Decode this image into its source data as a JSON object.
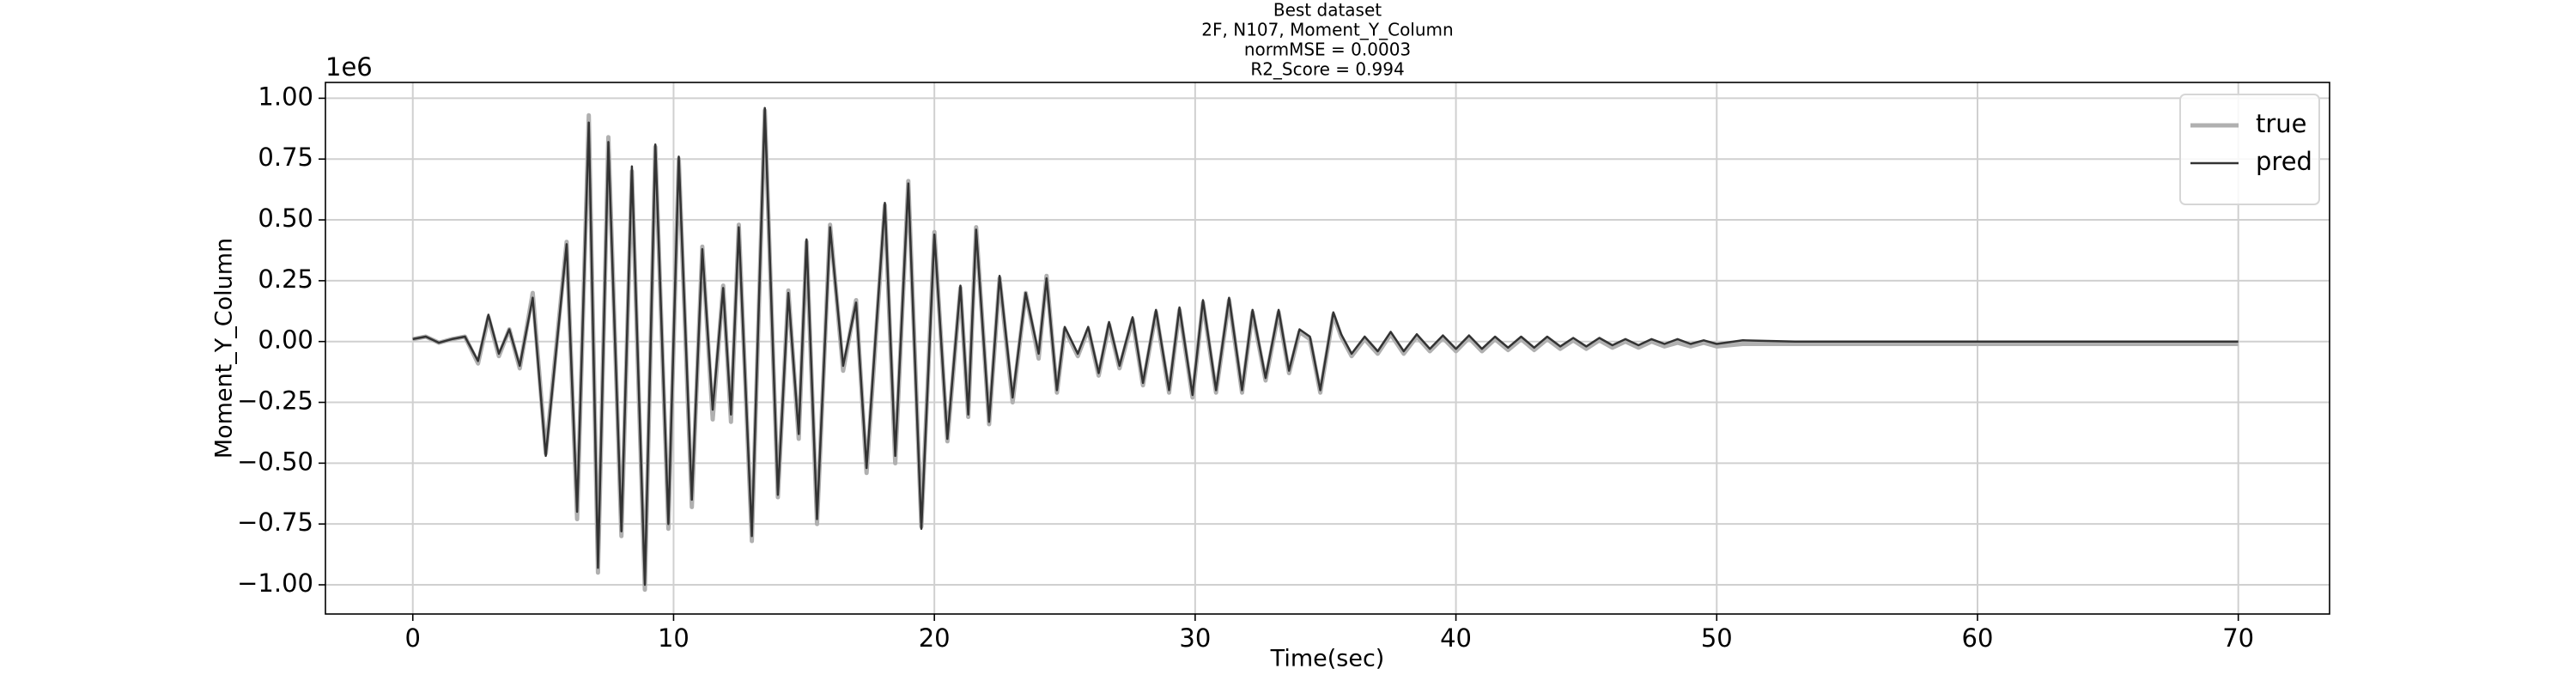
{
  "chart_data": {
    "type": "line",
    "title_lines": [
      "Best dataset",
      "2F, N107, Moment_Y_Column",
      "normMSE = 0.0003",
      "R2_Score = 0.994"
    ],
    "xlabel": "Time(sec)",
    "ylabel": "Moment_Y_Column",
    "y_offset_text": "1e6",
    "xlim": [
      -3.35,
      73.5
    ],
    "ylim": [
      -1.12,
      1.065
    ],
    "xticks": [
      0,
      10,
      20,
      30,
      40,
      50,
      60,
      70
    ],
    "yticks": [
      {
        "value": -1,
        "label": "−1.00"
      },
      {
        "value": -0.75,
        "label": "−0.75"
      },
      {
        "value": -0.5,
        "label": "−0.50"
      },
      {
        "value": -0.25,
        "label": "−0.25"
      },
      {
        "value": 0,
        "label": "0.00"
      },
      0.25,
      {
        "value": 0.5,
        "label": "0.50"
      },
      0.75,
      {
        "value": 1,
        "label": "1.00"
      }
    ],
    "grid": true,
    "legend_loc": "upper right",
    "x": [
      0,
      0.5,
      1,
      1.5,
      2,
      2.5,
      2.9,
      3.3,
      3.7,
      4.1,
      4.6,
      5.1,
      5.9,
      6.3,
      6.75,
      7.1,
      7.5,
      8.0,
      8.4,
      8.9,
      9.3,
      9.8,
      10.2,
      10.7,
      11.1,
      11.5,
      11.9,
      12.2,
      12.5,
      13.0,
      13.5,
      14.0,
      14.4,
      14.8,
      15.1,
      15.5,
      16.0,
      16.5,
      17.0,
      17.4,
      18.1,
      18.5,
      19.0,
      19.5,
      20.0,
      20.5,
      21.0,
      21.3,
      21.6,
      22.1,
      22.5,
      23.0,
      23.5,
      24.0,
      24.3,
      24.7,
      25.0,
      25.5,
      25.9,
      26.3,
      26.7,
      27.1,
      27.6,
      28.0,
      28.5,
      29.0,
      29.4,
      29.9,
      30.3,
      30.8,
      31.3,
      31.8,
      32.2,
      32.7,
      33.2,
      33.6,
      34.0,
      34.4,
      34.8,
      35.3,
      35.6,
      36.0,
      36.5,
      37.0,
      37.5,
      38.0,
      38.5,
      39.0,
      39.5,
      40.0,
      40.5,
      41.0,
      41.5,
      42.0,
      42.5,
      43.0,
      43.5,
      44.0,
      44.5,
      45.0,
      45.5,
      46.0,
      46.5,
      47.0,
      47.5,
      48.0,
      48.5,
      49.0,
      49.5,
      50.0,
      51,
      53,
      55,
      60,
      65,
      70
    ],
    "series": [
      {
        "name": "true",
        "color": "#b0b0b0",
        "width": 5,
        "values": [
          0.01,
          0.02,
          -0.005,
          0.01,
          0.02,
          -0.09,
          0.1,
          -0.06,
          0.05,
          -0.11,
          0.2,
          -0.46,
          0.41,
          -0.73,
          0.93,
          -0.95,
          0.84,
          -0.8,
          0.7,
          -1.02,
          0.8,
          -0.77,
          0.75,
          -0.68,
          0.39,
          -0.32,
          0.23,
          -0.33,
          0.48,
          -0.82,
          0.95,
          -0.64,
          0.21,
          -0.4,
          0.41,
          -0.75,
          0.48,
          -0.12,
          0.17,
          -0.54,
          0.56,
          -0.5,
          0.66,
          -0.76,
          0.45,
          -0.41,
          0.22,
          -0.31,
          0.47,
          -0.34,
          0.26,
          -0.25,
          0.2,
          -0.07,
          0.27,
          -0.21,
          0.05,
          -0.06,
          0.05,
          -0.14,
          0.07,
          -0.11,
          0.09,
          -0.18,
          0.12,
          -0.21,
          0.13,
          -0.23,
          0.16,
          -0.21,
          0.17,
          -0.21,
          0.12,
          -0.16,
          0.12,
          -0.13,
          0.04,
          0.01,
          -0.21,
          0.11,
          0.02,
          -0.06,
          0.01,
          -0.05,
          0.03,
          -0.05,
          0.02,
          -0.04,
          0.015,
          -0.04,
          0.015,
          -0.04,
          0.01,
          -0.035,
          0.01,
          -0.035,
          0.01,
          -0.03,
          0.005,
          -0.03,
          0.005,
          -0.025,
          0,
          -0.025,
          0,
          -0.02,
          -0.005,
          -0.02,
          -0.005,
          -0.02,
          -0.01,
          -0.01,
          -0.01,
          -0.01,
          -0.01,
          -0.01
        ]
      },
      {
        "name": "pred",
        "color": "#333333",
        "width": 2.5,
        "values": [
          0.01,
          0.02,
          -0.005,
          0.01,
          0.02,
          -0.08,
          0.11,
          -0.05,
          0.05,
          -0.1,
          0.18,
          -0.47,
          0.4,
          -0.7,
          0.9,
          -0.93,
          0.82,
          -0.78,
          0.72,
          -1.0,
          0.81,
          -0.75,
          0.76,
          -0.65,
          0.38,
          -0.28,
          0.22,
          -0.3,
          0.47,
          -0.8,
          0.96,
          -0.63,
          0.2,
          -0.38,
          0.42,
          -0.73,
          0.47,
          -0.1,
          0.16,
          -0.52,
          0.57,
          -0.47,
          0.65,
          -0.77,
          0.44,
          -0.4,
          0.23,
          -0.3,
          0.46,
          -0.33,
          0.27,
          -0.23,
          0.2,
          -0.05,
          0.26,
          -0.2,
          0.06,
          -0.05,
          0.06,
          -0.13,
          0.08,
          -0.1,
          0.1,
          -0.17,
          0.13,
          -0.2,
          0.14,
          -0.22,
          0.17,
          -0.2,
          0.18,
          -0.2,
          0.13,
          -0.15,
          0.13,
          -0.12,
          0.05,
          0.02,
          -0.2,
          0.12,
          0.03,
          -0.05,
          0.02,
          -0.04,
          0.04,
          -0.04,
          0.03,
          -0.03,
          0.025,
          -0.03,
          0.025,
          -0.03,
          0.02,
          -0.025,
          0.02,
          -0.025,
          0.02,
          -0.02,
          0.015,
          -0.02,
          0.015,
          -0.015,
          0.01,
          -0.015,
          0.01,
          -0.01,
          0.01,
          -0.01,
          0.005,
          -0.01,
          0.005,
          0,
          0,
          0,
          0,
          0
        ]
      }
    ]
  }
}
